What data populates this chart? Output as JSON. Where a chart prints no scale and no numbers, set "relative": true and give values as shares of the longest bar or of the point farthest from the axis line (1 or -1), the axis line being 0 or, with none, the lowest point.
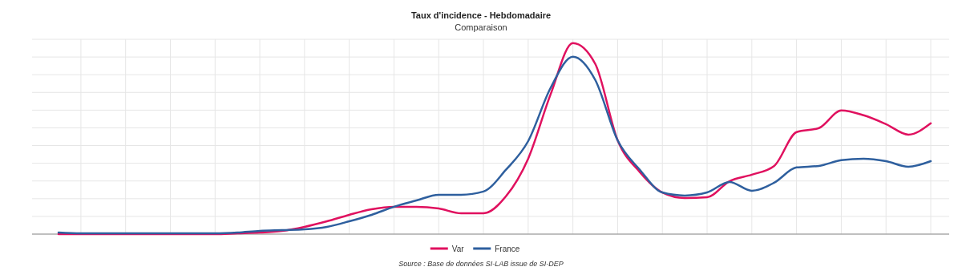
{
  "chart_data": {
    "type": "line",
    "title": "Taux d'incidence - Hebdomadaire",
    "subtitle": "Comparaison",
    "relative": true,
    "grid": true,
    "legend": "bottom",
    "marker": "none",
    "line_style": "solid",
    "categories": [
      null,
      null,
      null,
      null,
      null,
      null,
      null,
      null,
      null,
      null,
      null,
      null,
      null,
      null,
      null,
      null,
      null,
      null,
      null,
      null,
      null,
      null,
      null,
      null,
      null,
      null,
      null,
      null,
      null,
      null,
      null,
      null,
      null,
      null,
      null,
      null,
      null,
      null,
      null,
      null
    ],
    "series": [
      {
        "name": "Var",
        "color": "#e0115f",
        "values": [
          0,
          0,
          0,
          0,
          0,
          0,
          0,
          0,
          0.004,
          0.008,
          0.017,
          0.038,
          0.067,
          0.101,
          0.13,
          0.143,
          0.143,
          0.134,
          0.109,
          0.109,
          0.197,
          0.395,
          0.731,
          1,
          0.891,
          0.491,
          0.324,
          0.218,
          0.189,
          0.193,
          0.277,
          0.311,
          0.357,
          0.534,
          0.555,
          0.647,
          0.622,
          0.576,
          0.521,
          0.58
        ]
      },
      {
        "name": "France",
        "color": "#2e5f9e",
        "values": [
          0.008,
          0.004,
          0.004,
          0.004,
          0.004,
          0.004,
          0.004,
          0.004,
          0.008,
          0.017,
          0.021,
          0.025,
          0.038,
          0.067,
          0.101,
          0.143,
          0.176,
          0.206,
          0.206,
          0.223,
          0.336,
          0.487,
          0.765,
          0.929,
          0.807,
          0.491,
          0.336,
          0.218,
          0.202,
          0.218,
          0.273,
          0.227,
          0.269,
          0.349,
          0.357,
          0.387,
          0.395,
          0.382,
          0.353,
          0.382
        ]
      }
    ],
    "annotations": [
      "Source : Base de données SI-LAB issue de SI-DEP"
    ]
  }
}
